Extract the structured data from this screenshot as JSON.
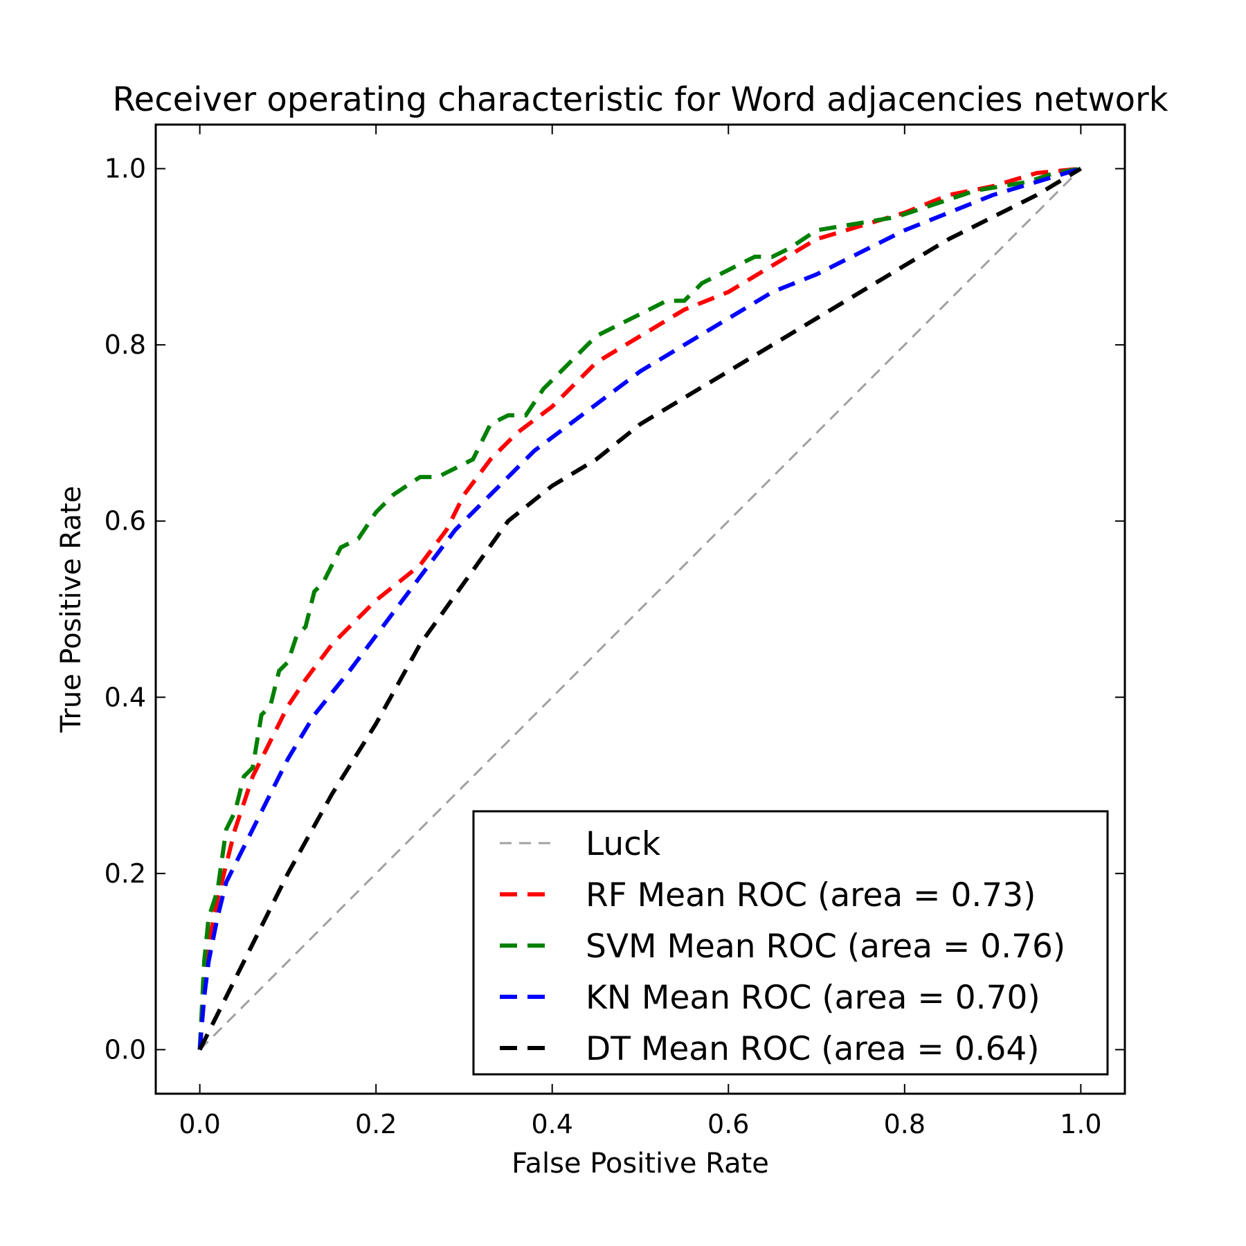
{
  "chart_data": {
    "type": "line",
    "title": "Receiver operating characteristic for Word adjacencies network",
    "xlabel": "False Positive Rate",
    "ylabel": "True Positive Rate",
    "xlim": [
      -0.05,
      1.05
    ],
    "ylim": [
      -0.05,
      1.05
    ],
    "xticks": [
      "0.0",
      "0.2",
      "0.4",
      "0.6",
      "0.8",
      "1.0"
    ],
    "yticks": [
      "0.0",
      "0.2",
      "0.4",
      "0.6",
      "0.8",
      "1.0"
    ],
    "grid": false,
    "legend_position": "lower-right",
    "series": [
      {
        "name": "Luck",
        "color": "#a0a0a0",
        "style": "dashed-thin",
        "x": [
          0,
          1
        ],
        "y": [
          0,
          1
        ]
      },
      {
        "name": "RF Mean ROC (area = 0.73)",
        "color": "#ff0000",
        "style": "dashed",
        "x": [
          0,
          0.005,
          0.01,
          0.02,
          0.03,
          0.04,
          0.05,
          0.06,
          0.08,
          0.1,
          0.12,
          0.15,
          0.18,
          0.2,
          0.25,
          0.28,
          0.3,
          0.33,
          0.36,
          0.4,
          0.45,
          0.5,
          0.55,
          0.6,
          0.65,
          0.7,
          0.75,
          0.8,
          0.85,
          0.9,
          0.95,
          1.0
        ],
        "y": [
          0,
          0.06,
          0.12,
          0.17,
          0.21,
          0.25,
          0.28,
          0.31,
          0.35,
          0.39,
          0.42,
          0.46,
          0.49,
          0.51,
          0.55,
          0.59,
          0.63,
          0.67,
          0.7,
          0.73,
          0.78,
          0.81,
          0.84,
          0.86,
          0.89,
          0.92,
          0.935,
          0.95,
          0.97,
          0.98,
          0.995,
          1.0
        ]
      },
      {
        "name": "SVM Mean ROC (area = 0.76)",
        "color": "#008000",
        "style": "dashed",
        "x": [
          0,
          0.005,
          0.01,
          0.02,
          0.03,
          0.04,
          0.05,
          0.06,
          0.07,
          0.08,
          0.09,
          0.1,
          0.11,
          0.12,
          0.13,
          0.14,
          0.16,
          0.18,
          0.2,
          0.22,
          0.25,
          0.27,
          0.29,
          0.31,
          0.33,
          0.35,
          0.37,
          0.39,
          0.41,
          0.43,
          0.45,
          0.47,
          0.49,
          0.51,
          0.53,
          0.55,
          0.57,
          0.59,
          0.61,
          0.63,
          0.65,
          0.67,
          0.7,
          0.73,
          0.76,
          0.79,
          0.82,
          0.85,
          0.88,
          0.91,
          0.94,
          0.97,
          1.0
        ],
        "y": [
          0,
          0.1,
          0.15,
          0.18,
          0.25,
          0.27,
          0.31,
          0.32,
          0.38,
          0.39,
          0.43,
          0.44,
          0.47,
          0.48,
          0.52,
          0.53,
          0.57,
          0.58,
          0.61,
          0.63,
          0.65,
          0.65,
          0.66,
          0.67,
          0.71,
          0.72,
          0.72,
          0.75,
          0.77,
          0.79,
          0.81,
          0.82,
          0.83,
          0.84,
          0.85,
          0.85,
          0.87,
          0.88,
          0.89,
          0.9,
          0.9,
          0.91,
          0.93,
          0.935,
          0.94,
          0.945,
          0.955,
          0.965,
          0.975,
          0.98,
          0.985,
          0.995,
          1.0
        ]
      },
      {
        "name": "KN Mean ROC (area = 0.70)",
        "color": "#0000ff",
        "style": "dashed",
        "x": [
          0,
          0.005,
          0.01,
          0.02,
          0.03,
          0.05,
          0.07,
          0.1,
          0.13,
          0.17,
          0.2,
          0.23,
          0.26,
          0.29,
          0.32,
          0.35,
          0.38,
          0.42,
          0.46,
          0.5,
          0.55,
          0.6,
          0.65,
          0.7,
          0.75,
          0.8,
          0.85,
          0.9,
          0.95,
          1.0
        ],
        "y": [
          0,
          0.06,
          0.1,
          0.15,
          0.19,
          0.23,
          0.27,
          0.33,
          0.38,
          0.43,
          0.47,
          0.51,
          0.55,
          0.59,
          0.62,
          0.65,
          0.68,
          0.71,
          0.74,
          0.77,
          0.8,
          0.83,
          0.86,
          0.88,
          0.905,
          0.93,
          0.95,
          0.97,
          0.985,
          1.0
        ]
      },
      {
        "name": "DT Mean ROC (area = 0.64)",
        "color": "#000000",
        "style": "dashed",
        "x": [
          0,
          0.05,
          0.1,
          0.15,
          0.2,
          0.25,
          0.3,
          0.35,
          0.4,
          0.45,
          0.5,
          0.55,
          0.6,
          0.65,
          0.7,
          0.75,
          0.8,
          0.85,
          0.9,
          0.95,
          1.0
        ],
        "y": [
          0,
          0.1,
          0.2,
          0.29,
          0.37,
          0.46,
          0.53,
          0.6,
          0.64,
          0.67,
          0.71,
          0.74,
          0.77,
          0.8,
          0.83,
          0.86,
          0.89,
          0.92,
          0.945,
          0.97,
          1.0
        ]
      }
    ]
  }
}
